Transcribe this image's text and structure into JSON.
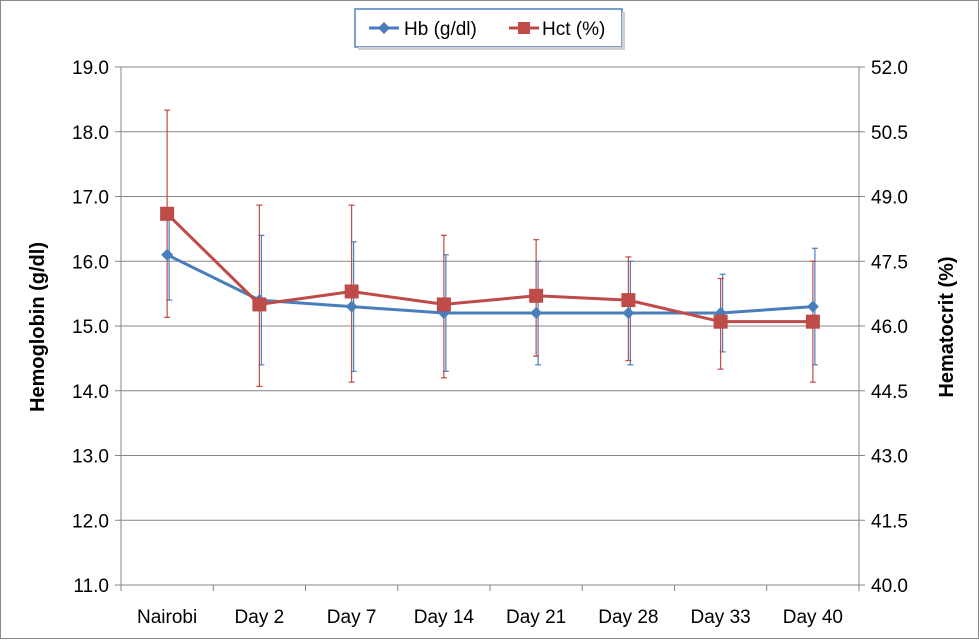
{
  "chart_data": {
    "type": "line",
    "categories": [
      "Nairobi",
      "Day 2",
      "Day 7",
      "Day 14",
      "Day 21",
      "Day 28",
      "Day 33",
      "Day 40"
    ],
    "series": [
      {
        "name": "Hb (g/dl)",
        "axis": "left",
        "color": "#4a7ebb",
        "marker": "diamond",
        "values": [
          16.1,
          15.4,
          15.3,
          15.2,
          15.2,
          15.2,
          15.2,
          15.3
        ],
        "error_upper": [
          16.7,
          16.4,
          16.3,
          16.1,
          16.0,
          16.0,
          15.8,
          16.2
        ],
        "error_lower": [
          15.4,
          14.4,
          14.3,
          14.3,
          14.4,
          14.4,
          14.6,
          14.4
        ]
      },
      {
        "name": "Hct (%)",
        "axis": "right",
        "color": "#be4b48",
        "marker": "square",
        "values": [
          48.6,
          46.5,
          46.8,
          46.5,
          46.7,
          46.6,
          46.1,
          46.1
        ],
        "error_upper": [
          51.0,
          48.8,
          48.8,
          48.1,
          48.0,
          47.6,
          47.1,
          47.5
        ],
        "error_lower": [
          46.2,
          44.6,
          44.7,
          44.8,
          45.3,
          45.2,
          45.0,
          44.7
        ]
      }
    ],
    "y_left": {
      "label": "Hemoglobin (g/dl)",
      "lim": [
        11.0,
        19.0
      ],
      "ticks": [
        "11.0",
        "12.0",
        "13.0",
        "14.0",
        "15.0",
        "16.0",
        "17.0",
        "18.0",
        "19.0"
      ]
    },
    "y_right": {
      "label": "Hematocrit (%)",
      "lim": [
        40.0,
        52.0
      ],
      "ticks": [
        "40.0",
        "41.5",
        "43.0",
        "44.5",
        "46.0",
        "47.5",
        "49.0",
        "50.5",
        "52.0"
      ]
    },
    "legend": {
      "position": "top-center",
      "entries": [
        "Hb (g/dl)",
        "Hct (%)"
      ]
    },
    "grid": "horizontal"
  }
}
